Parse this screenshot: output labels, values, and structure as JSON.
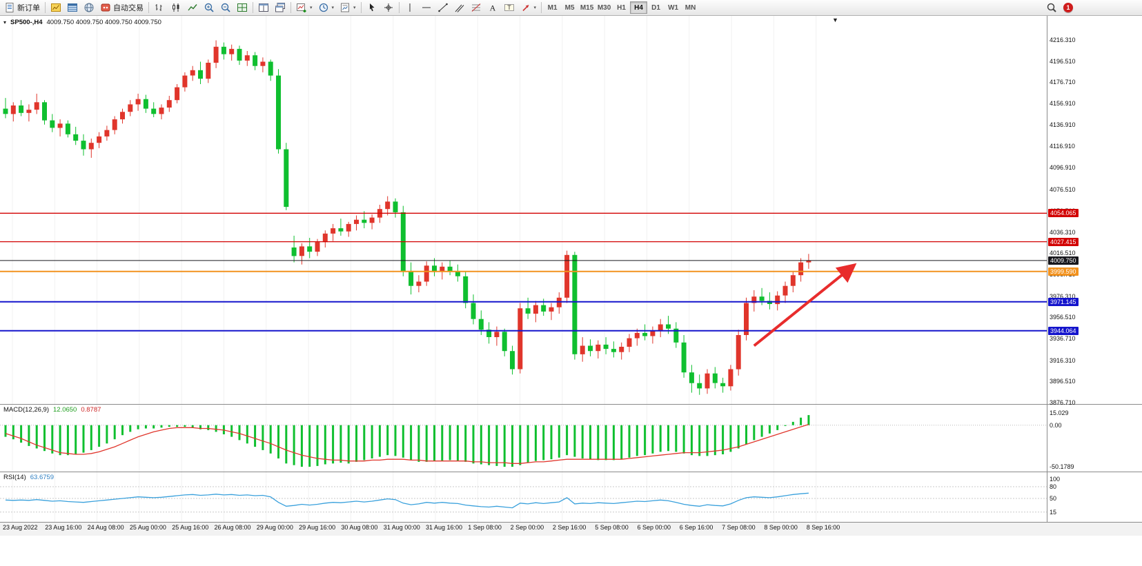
{
  "icons": {
    "caret_down": "▾",
    "shift_marker": "▼"
  },
  "toolbar": {
    "new_order_label": "新订单",
    "auto_trading_label": "自动交易",
    "timeframes": [
      "M1",
      "M5",
      "M15",
      "M30",
      "H1",
      "H4",
      "D1",
      "W1",
      "MN"
    ],
    "active_timeframe": "H4",
    "notification_count": "1"
  },
  "chart": {
    "symbol_label": "SP500-,H4",
    "ohlc_readout": "4009.750 4009.750 4009.750 4009.750",
    "price_axis_labels": [
      "4216.310",
      "4196.510",
      "4176.710",
      "4156.910",
      "4136.910",
      "4116.910",
      "4096.910",
      "4076.510",
      "4056.510",
      "4036.310",
      "4016.510",
      "3996.710",
      "3976.310",
      "3956.510",
      "3936.710",
      "3916.310",
      "3896.510",
      "3876.710"
    ],
    "levels": [
      {
        "label": "4054.065",
        "value": 4054.065,
        "color": "#d20000",
        "line_width": 1.3,
        "current": false
      },
      {
        "label": "4027.415",
        "value": 4027.415,
        "color": "#d20000",
        "line_width": 1.3,
        "current": false
      },
      {
        "label": "4009.750",
        "value": 4009.75,
        "color": "#17171c",
        "line_width": 1,
        "current": true
      },
      {
        "label": "3999.590",
        "value": 3999.59,
        "color": "#f2921e",
        "line_width": 2,
        "current": false
      },
      {
        "label": "3971.145",
        "value": 3971.145,
        "color": "#1414cc",
        "line_width": 2,
        "current": false
      },
      {
        "label": "3944.064",
        "value": 3944.064,
        "color": "#1414cc",
        "line_width": 2,
        "current": false
      }
    ],
    "time_axis_labels": [
      "23 Aug 2022",
      "23 Aug 16:00",
      "24 Aug 08:00",
      "25 Aug 00:00",
      "25 Aug 16:00",
      "26 Aug 08:00",
      "29 Aug 00:00",
      "29 Aug 16:00",
      "30 Aug 08:00",
      "31 Aug 00:00",
      "31 Aug 16:00",
      "1 Sep 08:00",
      "2 Sep 00:00",
      "2 Sep 16:00",
      "5 Sep 08:00",
      "6 Sep 00:00",
      "6 Sep 16:00",
      "7 Sep 08:00",
      "8 Sep 00:00",
      "8 Sep 16:00"
    ]
  },
  "macd_panel": {
    "name": "MACD(12,26,9)",
    "main_value": "12.0650",
    "signal_value": "0.8787",
    "axis_labels": [
      "15.029",
      "0.00",
      "-50.1789"
    ]
  },
  "rsi_panel": {
    "name": "RSI(14)",
    "value": "63.6759",
    "axis_labels": [
      "100",
      "80",
      "50",
      "15"
    ]
  },
  "theme": {
    "bull_color": "#e0352b",
    "bear_color": "#0fbf2f",
    "macd_histogram_color": "#0fbf2f",
    "macd_signal_color": "#e0352b",
    "rsi_line_color": "#38a0dc",
    "arrow_color": "#e82c2c"
  },
  "chart_data": {
    "type": "candlestick",
    "symbol": "SP500-",
    "timeframe": "H4",
    "y_range": [
      3876.71,
      4216.31
    ],
    "horizontal_levels": [
      4054.065,
      4027.415,
      4009.75,
      3999.59,
      3971.145,
      3944.064
    ],
    "current_price": 4009.75,
    "candles_ohlc": [
      [
        4152,
        4162,
        4143,
        4147
      ],
      [
        4147,
        4158,
        4140,
        4155
      ],
      [
        4155,
        4160,
        4145,
        4148
      ],
      [
        4148,
        4156,
        4140,
        4151
      ],
      [
        4151,
        4166,
        4147,
        4158
      ],
      [
        4158,
        4160,
        4137,
        4141
      ],
      [
        4141,
        4147,
        4130,
        4134
      ],
      [
        4134,
        4142,
        4126,
        4138
      ],
      [
        4138,
        4141,
        4125,
        4128
      ],
      [
        4128,
        4135,
        4118,
        4122
      ],
      [
        4122,
        4128,
        4108,
        4114
      ],
      [
        4114,
        4124,
        4106,
        4120
      ],
      [
        4120,
        4130,
        4115,
        4126
      ],
      [
        4126,
        4136,
        4122,
        4132
      ],
      [
        4132,
        4145,
        4128,
        4142
      ],
      [
        4142,
        4152,
        4138,
        4149
      ],
      [
        4149,
        4160,
        4145,
        4156
      ],
      [
        4156,
        4166,
        4150,
        4161
      ],
      [
        4161,
        4165,
        4148,
        4152
      ],
      [
        4152,
        4158,
        4144,
        4147
      ],
      [
        4147,
        4156,
        4142,
        4153
      ],
      [
        4153,
        4164,
        4149,
        4160
      ],
      [
        4160,
        4175,
        4157,
        4172
      ],
      [
        4172,
        4186,
        4168,
        4183
      ],
      [
        4183,
        4192,
        4178,
        4188
      ],
      [
        4188,
        4196,
        4175,
        4180
      ],
      [
        4180,
        4198,
        4176,
        4195
      ],
      [
        4195,
        4216,
        4190,
        4210
      ],
      [
        4210,
        4214,
        4198,
        4203
      ],
      [
        4203,
        4212,
        4197,
        4208
      ],
      [
        4208,
        4211,
        4193,
        4197
      ],
      [
        4197,
        4206,
        4192,
        4202
      ],
      [
        4202,
        4205,
        4188,
        4192
      ],
      [
        4192,
        4200,
        4186,
        4196
      ],
      [
        4196,
        4198,
        4178,
        4183
      ],
      [
        4183,
        4189,
        4110,
        4114
      ],
      [
        4114,
        4120,
        4057,
        4060
      ],
      [
        4022,
        4033,
        4008,
        4014
      ],
      [
        4014,
        4026,
        4006,
        4023
      ],
      [
        4023,
        4031,
        4012,
        4018
      ],
      [
        4018,
        4030,
        4014,
        4027
      ],
      [
        4027,
        4038,
        4022,
        4035
      ],
      [
        4035,
        4044,
        4028,
        4040
      ],
      [
        4040,
        4049,
        4033,
        4037
      ],
      [
        4037,
        4046,
        4032,
        4044
      ],
      [
        4044,
        4052,
        4038,
        4048
      ],
      [
        4048,
        4056,
        4040,
        4045
      ],
      [
        4045,
        4053,
        4039,
        4050
      ],
      [
        4050,
        4062,
        4045,
        4058
      ],
      [
        4058,
        4070,
        4052,
        4065
      ],
      [
        4065,
        4068,
        4050,
        4055
      ],
      [
        4055,
        4061,
        3995,
        4000
      ],
      [
        4000,
        4008,
        3978,
        3986
      ],
      [
        3986,
        3996,
        3980,
        3990
      ],
      [
        3990,
        4009,
        3986,
        4005
      ],
      [
        4005,
        4012,
        3995,
        3999
      ],
      [
        3999,
        4008,
        3992,
        4004
      ],
      [
        4004,
        4010,
        3996,
        4000
      ],
      [
        4000,
        4006,
        3990,
        3995
      ],
      [
        3995,
        4000,
        3965,
        3970
      ],
      [
        3970,
        3978,
        3950,
        3955
      ],
      [
        3955,
        3963,
        3940,
        3945
      ],
      [
        3945,
        3952,
        3932,
        3938
      ],
      [
        3938,
        3948,
        3930,
        3943
      ],
      [
        3943,
        3946,
        3920,
        3925
      ],
      [
        3925,
        3930,
        3903,
        3908
      ],
      [
        3908,
        3970,
        3904,
        3965
      ],
      [
        3965,
        3975,
        3955,
        3960
      ],
      [
        3960,
        3972,
        3952,
        3968
      ],
      [
        3968,
        3974,
        3958,
        3962
      ],
      [
        3962,
        3970,
        3954,
        3966
      ],
      [
        3966,
        3980,
        3960,
        3975
      ],
      [
        3975,
        4019,
        3970,
        4015
      ],
      [
        4015,
        4018,
        3917,
        3922
      ],
      [
        3922,
        3938,
        3915,
        3930
      ],
      [
        3930,
        3936,
        3920,
        3925
      ],
      [
        3925,
        3935,
        3918,
        3931
      ],
      [
        3931,
        3938,
        3922,
        3927
      ],
      [
        3927,
        3934,
        3919,
        3924
      ],
      [
        3924,
        3933,
        3917,
        3929
      ],
      [
        3929,
        3941,
        3924,
        3937
      ],
      [
        3937,
        3946,
        3930,
        3942
      ],
      [
        3942,
        3950,
        3935,
        3939
      ],
      [
        3939,
        3948,
        3932,
        3944
      ],
      [
        3944,
        3955,
        3938,
        3950
      ],
      [
        3950,
        3958,
        3941,
        3946
      ],
      [
        3946,
        3952,
        3928,
        3933
      ],
      [
        3933,
        3940,
        3900,
        3905
      ],
      [
        3905,
        3912,
        3886,
        3895
      ],
      [
        3895,
        3903,
        3884,
        3890
      ],
      [
        3890,
        3908,
        3885,
        3904
      ],
      [
        3904,
        3910,
        3890,
        3895
      ],
      [
        3895,
        3900,
        3886,
        3892
      ],
      [
        3892,
        3912,
        3888,
        3908
      ],
      [
        3908,
        3945,
        3902,
        3940
      ],
      [
        3940,
        3975,
        3935,
        3970
      ],
      [
        3970,
        3982,
        3962,
        3976
      ],
      [
        3976,
        3984,
        3968,
        3972
      ],
      [
        3972,
        3980,
        3964,
        3969
      ],
      [
        3969,
        3981,
        3963,
        3977
      ],
      [
        3977,
        3990,
        3970,
        3986
      ],
      [
        3986,
        4000,
        3980,
        3996
      ],
      [
        3996,
        4012,
        3990,
        4008
      ],
      [
        4008,
        4016,
        4002,
        4009.75
      ]
    ],
    "macd": {
      "params": [
        12,
        26,
        9
      ],
      "histogram": [
        -14,
        -17,
        -21,
        -25,
        -28,
        -31,
        -34,
        -36,
        -36,
        -35,
        -33,
        -30,
        -26,
        -22,
        -17,
        -12,
        -8,
        -5,
        -4,
        -4,
        -3,
        -2,
        -2,
        -2,
        -3,
        -5,
        -6,
        -8,
        -11,
        -14,
        -18,
        -22,
        -26,
        -30,
        -34,
        -40,
        -46,
        -48,
        -50,
        -50,
        -49,
        -47,
        -46,
        -45,
        -46,
        -44,
        -42,
        -40,
        -38,
        -36,
        -37,
        -39,
        -42,
        -44,
        -44,
        -43,
        -43,
        -42,
        -43,
        -44,
        -46,
        -47,
        -48,
        -49,
        -50,
        -50,
        -48,
        -45,
        -43,
        -42,
        -41,
        -39,
        -36,
        -38,
        -40,
        -41,
        -42,
        -42,
        -42,
        -41,
        -39,
        -37,
        -36,
        -34,
        -32,
        -31,
        -32,
        -34,
        -36,
        -37,
        -37,
        -36,
        -35,
        -32,
        -28,
        -23,
        -18,
        -14,
        -10,
        -6,
        -1,
        4,
        9,
        12.07
      ],
      "signal": [
        -10,
        -13,
        -16,
        -20,
        -24,
        -27,
        -30,
        -33,
        -34,
        -35,
        -35,
        -34,
        -32,
        -29,
        -26,
        -22,
        -18,
        -14,
        -11,
        -8,
        -6,
        -4,
        -3,
        -3,
        -3,
        -4,
        -4,
        -5,
        -6,
        -8,
        -10,
        -13,
        -16,
        -19,
        -22,
        -26,
        -30,
        -33,
        -36,
        -38,
        -40,
        -41,
        -42,
        -42,
        -43,
        -43,
        -43,
        -42,
        -42,
        -41,
        -41,
        -41,
        -42,
        -42,
        -43,
        -43,
        -43,
        -43,
        -43,
        -43,
        -44,
        -44,
        -45,
        -45,
        -45,
        -46,
        -46,
        -45,
        -44,
        -44,
        -43,
        -42,
        -41,
        -41,
        -41,
        -41,
        -41,
        -41,
        -41,
        -41,
        -40,
        -39,
        -38,
        -37,
        -36,
        -35,
        -34,
        -33,
        -33,
        -33,
        -32,
        -31,
        -30,
        -28,
        -26,
        -23,
        -20,
        -17,
        -14,
        -11,
        -8,
        -5,
        -2,
        0.88
      ]
    },
    "rsi": {
      "period": 14,
      "values": [
        46,
        45,
        46,
        45,
        47,
        45,
        43,
        44,
        42,
        41,
        40,
        42,
        44,
        46,
        48,
        50,
        52,
        54,
        53,
        52,
        53,
        55,
        57,
        59,
        60,
        58,
        59,
        61,
        59,
        60,
        58,
        59,
        57,
        58,
        54,
        40,
        30,
        32,
        35,
        33,
        35,
        38,
        40,
        39,
        41,
        43,
        41,
        43,
        46,
        49,
        47,
        38,
        34,
        36,
        40,
        38,
        40,
        38,
        37,
        33,
        31,
        29,
        28,
        30,
        28,
        26,
        38,
        36,
        39,
        37,
        39,
        41,
        52,
        36,
        38,
        37,
        39,
        38,
        37,
        39,
        41,
        43,
        42,
        44,
        46,
        44,
        40,
        35,
        32,
        30,
        34,
        32,
        31,
        36,
        45,
        52,
        54,
        53,
        52,
        54,
        57,
        60,
        62,
        63.68
      ]
    },
    "annotation_arrow": {
      "x1_index": 96,
      "price1": 3930,
      "x2_index": 108.6,
      "price2": 4004
    }
  }
}
